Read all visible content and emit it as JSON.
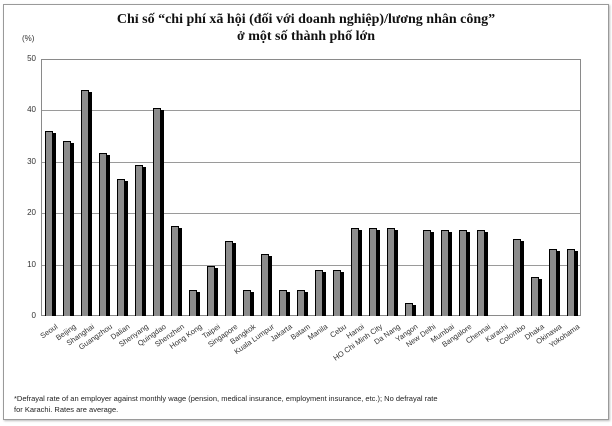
{
  "title_line1": "Chỉ số “chi phí xã hội (đối với doanh nghiệp)/lương nhân công”",
  "title_line2": "ở một số thành phố lớn",
  "unit_label": "(%)",
  "footnote_line1": "*Defrayal rate of  an employer against monthly wage (pension, medical insurance, employment insurance, etc.); No defrayal rate",
  "footnote_line2": "for Karachi. Rates are average.",
  "yticks": [
    "0",
    "10",
    "20",
    "30",
    "40",
    "50"
  ],
  "colors": {
    "bar_fill": "#8c8c8c",
    "bar_shadow": "#000000",
    "gridline": "#9a9a9a"
  },
  "chart_data": {
    "type": "bar",
    "title": "Chỉ số “chi phí xã hội (đối với doanh nghiệp)/lương nhân công” ở một số thành phố lớn",
    "xlabel": "",
    "ylabel": "(%)",
    "ylim": [
      0,
      50
    ],
    "yticks": [
      0,
      10,
      20,
      30,
      40,
      50
    ],
    "grid": true,
    "legend": null,
    "categories": [
      "Seoul",
      "Beijing",
      "Shanghai",
      "Guangzhou",
      "Dalian",
      "Shenyang",
      "Quingdao",
      "Shenzhen",
      "Hong Kong",
      "Taipei",
      "Singapore",
      "Bangkok",
      "Kuala Lumpur",
      "Jakarta",
      "Batam",
      "Manila",
      "Cebu",
      "Hanoi",
      "HO Chi Minh City",
      "Da Nang",
      "Yangon",
      "New Delhi",
      "Mumbai",
      "Bangalore",
      "Chennai",
      "Karachi",
      "Colombo",
      "Dhaka",
      "Okinawa",
      "Yokohama"
    ],
    "values": [
      36,
      34,
      44,
      31.7,
      26.7,
      29.4,
      40.5,
      17.5,
      5,
      9.8,
      14.6,
      5,
      12,
      5,
      5,
      9,
      9,
      17.1,
      17.1,
      17.1,
      2.5,
      16.8,
      16.8,
      16.8,
      16.8,
      0,
      15,
      7.5,
      13.1,
      13.1
    ],
    "annotations": [
      "*Defrayal rate of an employer against monthly wage (pension, medical insurance, employment insurance, etc.); No defrayal rate for Karachi. Rates are average."
    ]
  }
}
